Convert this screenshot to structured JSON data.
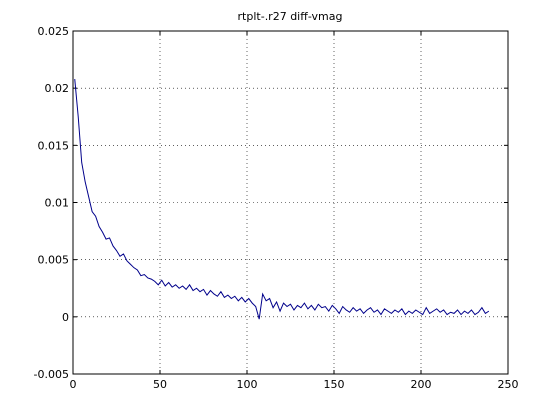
{
  "chart_data": {
    "type": "line",
    "title": "rtplt-.r27 diff-vmag",
    "x": [
      1,
      3,
      5,
      7,
      9,
      11,
      13,
      15,
      17,
      19,
      21,
      23,
      25,
      27,
      29,
      31,
      33,
      35,
      37,
      39,
      41,
      43,
      45,
      47,
      49,
      51,
      53,
      55,
      57,
      59,
      61,
      63,
      65,
      67,
      69,
      71,
      73,
      75,
      77,
      79,
      81,
      83,
      85,
      87,
      89,
      91,
      93,
      95,
      97,
      99,
      101,
      103,
      105,
      107,
      109,
      111,
      113,
      115,
      117,
      119,
      121,
      123,
      125,
      127,
      129,
      131,
      133,
      135,
      137,
      139,
      141,
      143,
      145,
      147,
      149,
      151,
      153,
      155,
      157,
      159,
      161,
      163,
      165,
      167,
      169,
      171,
      173,
      175,
      177,
      179,
      181,
      183,
      185,
      187,
      189,
      191,
      193,
      195,
      197,
      199,
      201,
      203,
      205,
      207,
      209,
      211,
      213,
      215,
      217,
      219,
      221,
      223,
      225,
      227,
      229,
      231,
      233,
      235,
      237,
      239
    ],
    "series": [
      {
        "color": "#00008b",
        "values": [
          0.0208,
          0.0175,
          0.0135,
          0.0118,
          0.0105,
          0.0092,
          0.0088,
          0.0079,
          0.0074,
          0.0068,
          0.0069,
          0.0062,
          0.0058,
          0.0053,
          0.0055,
          0.0049,
          0.0046,
          0.0043,
          0.0041,
          0.0036,
          0.0037,
          0.0034,
          0.0033,
          0.0031,
          0.0028,
          0.0032,
          0.0027,
          0.003,
          0.0026,
          0.0028,
          0.0025,
          0.0027,
          0.0024,
          0.0028,
          0.0023,
          0.0025,
          0.0022,
          0.0024,
          0.0019,
          0.0023,
          0.002,
          0.0018,
          0.0022,
          0.0017,
          0.0019,
          0.0016,
          0.0018,
          0.0014,
          0.0017,
          0.0013,
          0.0016,
          0.0012,
          0.0009,
          -0.0002,
          0.002,
          0.0014,
          0.0016,
          0.0008,
          0.0013,
          0.0005,
          0.0012,
          0.0009,
          0.0011,
          0.0006,
          0.001,
          0.0008,
          0.0012,
          0.0007,
          0.001,
          0.0006,
          0.0011,
          0.0008,
          0.0009,
          0.0005,
          0.001,
          0.0007,
          0.0003,
          0.0009,
          0.0006,
          0.0004,
          0.0008,
          0.0005,
          0.0007,
          0.0003,
          0.0006,
          0.0008,
          0.0004,
          0.0006,
          0.0002,
          0.0007,
          0.0005,
          0.0003,
          0.0006,
          0.0004,
          0.0007,
          0.0002,
          0.0005,
          0.0003,
          0.0006,
          0.0004,
          0.0002,
          0.0008,
          0.0003,
          0.0005,
          0.0007,
          0.0004,
          0.0006,
          0.0002,
          0.0004,
          0.0003,
          0.0006,
          0.0002,
          0.0005,
          0.0003,
          0.0006,
          0.0002,
          0.0004,
          0.0008,
          0.0003,
          0.0005
        ]
      }
    ],
    "xlim": [
      0,
      250
    ],
    "xticks": [
      0,
      50,
      100,
      150,
      200,
      250
    ],
    "ylim": [
      -0.005,
      0.025
    ],
    "yticks": [
      -0.005,
      0,
      0.005,
      0.01,
      0.015,
      0.02,
      0.025
    ],
    "grid": true
  }
}
